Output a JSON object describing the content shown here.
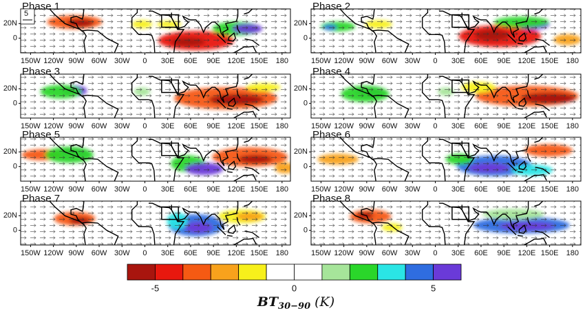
{
  "figure": {
    "vector_reference": "5",
    "panels": [
      {
        "label": "Phase 1"
      },
      {
        "label": "Phase 2"
      },
      {
        "label": "Phase 3"
      },
      {
        "label": "Phase 4"
      },
      {
        "label": "Phase 5"
      },
      {
        "label": "Phase 6"
      },
      {
        "label": "Phase 7"
      },
      {
        "label": "Phase 8"
      }
    ],
    "xlim": [
      -163,
      191
    ],
    "xticks": [
      {
        "value": -150,
        "label": "150W"
      },
      {
        "value": -120,
        "label": "120W"
      },
      {
        "value": -90,
        "label": "90W"
      },
      {
        "value": -60,
        "label": "60W"
      },
      {
        "value": -30,
        "label": "30W"
      },
      0,
      {
        "value": 30,
        "label": "30E"
      },
      {
        "value": 60,
        "label": "60E"
      },
      {
        "value": 90,
        "label": "90E"
      },
      {
        "value": 120,
        "label": "120E"
      },
      {
        "value": 150,
        "label": "150E"
      },
      180
    ],
    "ylim": [
      -20,
      40
    ],
    "yticks": [
      {
        "value": 20,
        "label": "20N"
      },
      0
    ],
    "colorbar": {
      "colors": [
        "#a8150e",
        "#e8180e",
        "#f55a13",
        "#f8a21c",
        "#f7f01b",
        "#ffffff",
        "#ffffff",
        "#a6e59a",
        "#2ad62a",
        "#2ae5e5",
        "#2f6de0",
        "#6a3ad8"
      ],
      "lim": [
        -6,
        6
      ],
      "ticks": [
        -5,
        0,
        5
      ],
      "title": {
        "text": "BT",
        "subscript": "30−90",
        "unit": "(K)"
      }
    }
  }
}
